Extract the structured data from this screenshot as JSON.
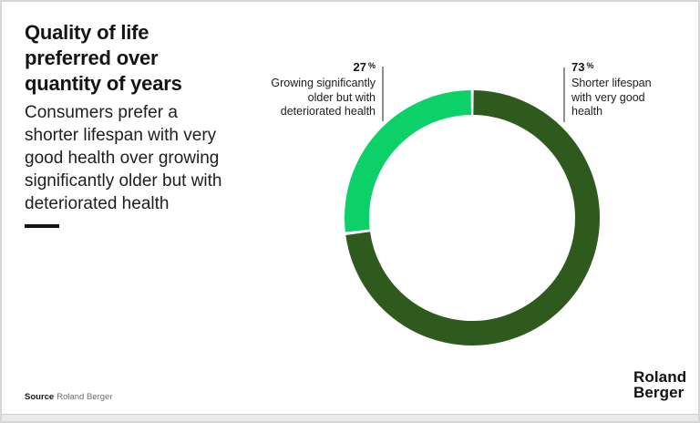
{
  "card": {
    "title": "Quality of life\npreferred over\nquantity of years",
    "subtitle": "Consumers prefer a\nshorter lifespan with very\ngood health over growing\nsignificantly older but with\ndeteriorated health",
    "source_label": "Source",
    "source_value": "Roland Berger",
    "logo_line1": "Roland",
    "logo_line2": "Berger"
  },
  "chart_data": {
    "type": "pie",
    "variant": "donut",
    "title": "Quality of life preferred over quantity of years",
    "start_angle": "top",
    "direction": "clockwise",
    "percent_symbol": "%",
    "leader_line_color": "#8f8f8f",
    "slices": [
      {
        "label": "Shorter lifespan\nwith very good\nhealth",
        "value": 73,
        "color": "#2e5a1d"
      },
      {
        "label": "Growing significantly\nolder but with\ndeteriorated health",
        "value": 27,
        "color": "#0cd168"
      }
    ]
  }
}
